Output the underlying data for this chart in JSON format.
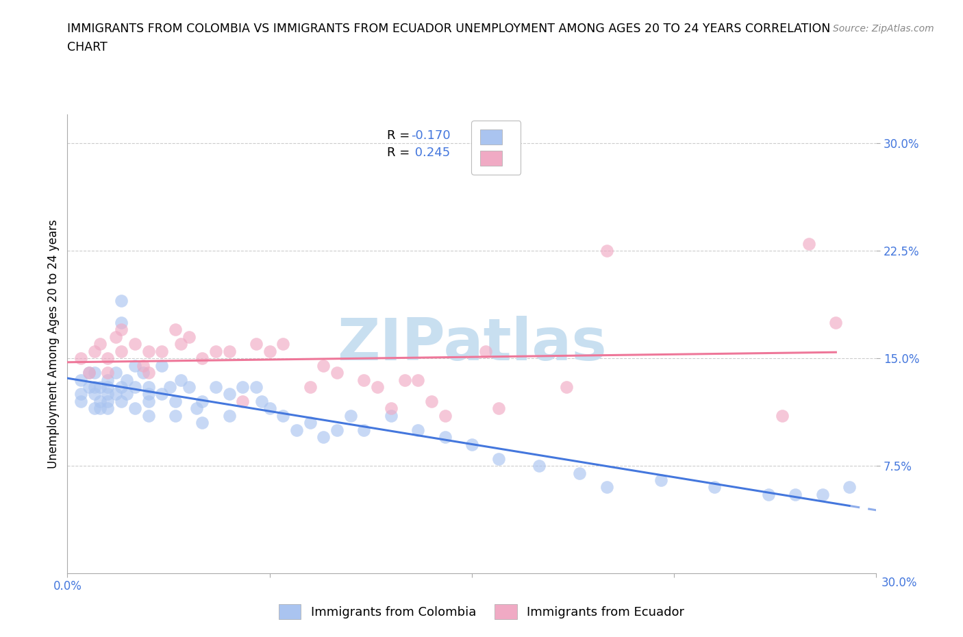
{
  "title_line1": "IMMIGRANTS FROM COLOMBIA VS IMMIGRANTS FROM ECUADOR UNEMPLOYMENT AMONG AGES 20 TO 24 YEARS CORRELATION",
  "title_line2": "CHART",
  "source": "Source: ZipAtlas.com",
  "ylabel": "Unemployment Among Ages 20 to 24 years",
  "xlim": [
    0.0,
    0.3
  ],
  "ylim": [
    0.0,
    0.32
  ],
  "xtick_vals": [
    0.0,
    0.075,
    0.15,
    0.225,
    0.3
  ],
  "xtick_labels": [
    "0.0%",
    "",
    "",
    "",
    ""
  ],
  "ytick_vals": [
    0.075,
    0.15,
    0.225,
    0.3
  ],
  "ytick_labels": [
    "7.5%",
    "15.0%",
    "22.5%",
    "30.0%"
  ],
  "colombia_color": "#aac4f0",
  "ecuador_color": "#f0aac4",
  "colombia_line_color": "#4477dd",
  "ecuador_line_color": "#ee7799",
  "tick_color": "#4477dd",
  "watermark_color": "#c8dff0",
  "colombia_N": 71,
  "ecuador_N": 41,
  "colombia_R": -0.17,
  "ecuador_R": 0.245,
  "legend_labels": [
    "Immigrants from Colombia",
    "Immigrants from Ecuador"
  ],
  "colombia_x": [
    0.005,
    0.005,
    0.005,
    0.008,
    0.008,
    0.01,
    0.01,
    0.01,
    0.01,
    0.012,
    0.012,
    0.012,
    0.015,
    0.015,
    0.015,
    0.015,
    0.015,
    0.018,
    0.018,
    0.02,
    0.02,
    0.02,
    0.02,
    0.022,
    0.022,
    0.025,
    0.025,
    0.025,
    0.028,
    0.03,
    0.03,
    0.03,
    0.03,
    0.035,
    0.035,
    0.038,
    0.04,
    0.04,
    0.042,
    0.045,
    0.048,
    0.05,
    0.05,
    0.055,
    0.06,
    0.06,
    0.065,
    0.07,
    0.072,
    0.075,
    0.08,
    0.085,
    0.09,
    0.095,
    0.1,
    0.105,
    0.11,
    0.12,
    0.13,
    0.14,
    0.15,
    0.16,
    0.175,
    0.19,
    0.2,
    0.22,
    0.24,
    0.26,
    0.27,
    0.28,
    0.29
  ],
  "colombia_y": [
    0.125,
    0.135,
    0.12,
    0.13,
    0.14,
    0.125,
    0.115,
    0.13,
    0.14,
    0.12,
    0.13,
    0.115,
    0.135,
    0.125,
    0.115,
    0.13,
    0.12,
    0.14,
    0.125,
    0.19,
    0.175,
    0.13,
    0.12,
    0.135,
    0.125,
    0.145,
    0.13,
    0.115,
    0.14,
    0.13,
    0.125,
    0.12,
    0.11,
    0.145,
    0.125,
    0.13,
    0.12,
    0.11,
    0.135,
    0.13,
    0.115,
    0.12,
    0.105,
    0.13,
    0.125,
    0.11,
    0.13,
    0.13,
    0.12,
    0.115,
    0.11,
    0.1,
    0.105,
    0.095,
    0.1,
    0.11,
    0.1,
    0.11,
    0.1,
    0.095,
    0.09,
    0.08,
    0.075,
    0.07,
    0.06,
    0.065,
    0.06,
    0.055,
    0.055,
    0.055,
    0.06
  ],
  "ecuador_x": [
    0.005,
    0.008,
    0.01,
    0.012,
    0.015,
    0.015,
    0.018,
    0.02,
    0.02,
    0.025,
    0.028,
    0.03,
    0.03,
    0.035,
    0.04,
    0.042,
    0.045,
    0.05,
    0.055,
    0.06,
    0.065,
    0.07,
    0.075,
    0.08,
    0.09,
    0.095,
    0.1,
    0.11,
    0.115,
    0.12,
    0.125,
    0.13,
    0.135,
    0.14,
    0.155,
    0.16,
    0.185,
    0.2,
    0.265,
    0.275,
    0.285
  ],
  "ecuador_y": [
    0.15,
    0.14,
    0.155,
    0.16,
    0.15,
    0.14,
    0.165,
    0.17,
    0.155,
    0.16,
    0.145,
    0.155,
    0.14,
    0.155,
    0.17,
    0.16,
    0.165,
    0.15,
    0.155,
    0.155,
    0.12,
    0.16,
    0.155,
    0.16,
    0.13,
    0.145,
    0.14,
    0.135,
    0.13,
    0.115,
    0.135,
    0.135,
    0.12,
    0.11,
    0.155,
    0.115,
    0.13,
    0.225,
    0.11,
    0.23,
    0.175
  ]
}
